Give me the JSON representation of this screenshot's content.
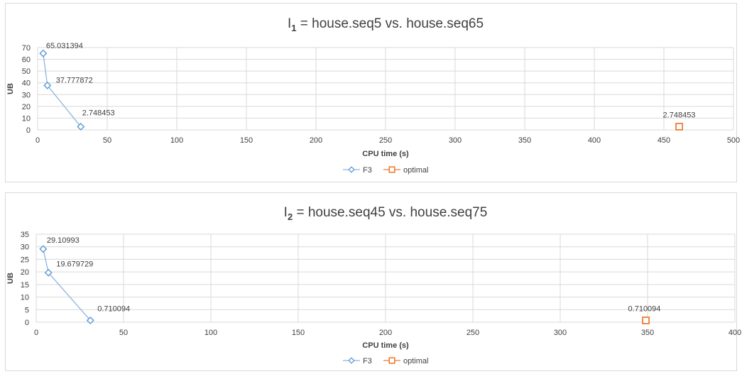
{
  "colors": {
    "F3": "#8fb4de",
    "F3_marker": "#5b9bd5",
    "optimal": "#ed7d31",
    "grid": "#d9d9d9"
  },
  "chart_data": [
    {
      "type": "scatter",
      "title_main": "I",
      "title_sub": "1",
      "title_rest": " = house.seq5 vs. house.seq65",
      "xlabel": "CPU time (s)",
      "ylabel": "UB",
      "xlim": [
        0,
        500
      ],
      "ylim": [
        0,
        70
      ],
      "xticks": [
        0,
        50,
        100,
        150,
        200,
        250,
        300,
        350,
        400,
        450,
        500
      ],
      "yticks": [
        0,
        10,
        20,
        30,
        40,
        50,
        60,
        70
      ],
      "grid": true,
      "legend_position": "bottom",
      "series": [
        {
          "name": "F3",
          "marker": "diamond",
          "line": true,
          "points": [
            {
              "x": 4,
              "y": 65.031394,
              "label": "65.031394"
            },
            {
              "x": 7,
              "y": 37.777872,
              "label": "37.777872"
            },
            {
              "x": 31,
              "y": 2.748453,
              "label": "2.748453"
            }
          ]
        },
        {
          "name": "optimal",
          "marker": "square",
          "line": false,
          "points": [
            {
              "x": 461,
              "y": 2.748453,
              "label": "2.748453"
            }
          ]
        }
      ]
    },
    {
      "type": "scatter",
      "title_main": "I",
      "title_sub": "2",
      "title_rest": " = house.seq45 vs. house.seq75",
      "xlabel": "CPU time (s)",
      "ylabel": "UB",
      "xlim": [
        0,
        400
      ],
      "ylim": [
        0,
        35
      ],
      "xticks": [
        0,
        50,
        100,
        150,
        200,
        250,
        300,
        350,
        400
      ],
      "yticks": [
        0,
        5,
        10,
        15,
        20,
        25,
        30,
        35
      ],
      "grid": true,
      "legend_position": "bottom",
      "series": [
        {
          "name": "F3",
          "marker": "diamond",
          "line": true,
          "points": [
            {
              "x": 4,
              "y": 29.10993,
              "label": "29.10993"
            },
            {
              "x": 7,
              "y": 19.679729,
              "label": "19.679729"
            },
            {
              "x": 31,
              "y": 0.710094,
              "label": "0.710094"
            }
          ]
        },
        {
          "name": "optimal",
          "marker": "square",
          "line": false,
          "points": [
            {
              "x": 349,
              "y": 0.710094,
              "label": "0.710094"
            }
          ]
        }
      ]
    }
  ]
}
